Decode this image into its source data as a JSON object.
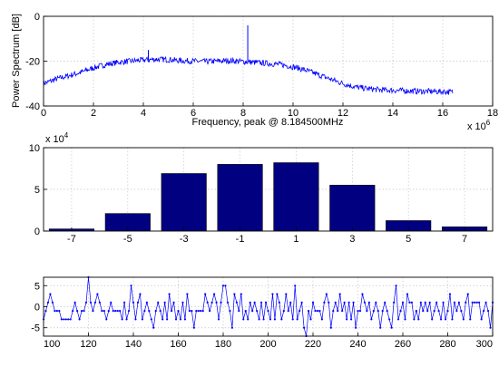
{
  "chart_data": [
    {
      "type": "line",
      "title": "",
      "xlabel": "Frequency, peak @ 8.184500MHz",
      "ylabel": "Power Spectrum [dB]",
      "x_exponent_label": "x 10",
      "x_exponent_power": "6",
      "xlim": [
        0,
        18
      ],
      "ylim": [
        -40,
        0
      ],
      "grid": true,
      "xticks": [
        "0",
        "2",
        "4",
        "6",
        "8",
        "10",
        "12",
        "14",
        "16",
        "18"
      ],
      "yticks": [
        "-40",
        "-20",
        "0"
      ],
      "series_color": "#0000ff",
      "envelope": {
        "x": [
          0,
          0.5,
          1,
          1.5,
          2,
          2.5,
          3,
          3.5,
          4,
          4.5,
          5,
          5.5,
          6,
          6.5,
          7,
          7.5,
          8,
          8.5,
          9,
          9.5,
          10,
          10.5,
          11,
          11.5,
          12,
          12.5,
          13,
          13.5,
          14,
          14.5,
          15,
          15.5,
          16,
          16.4
        ],
        "y": [
          -30,
          -28,
          -26.5,
          -25,
          -23,
          -21.5,
          -20.5,
          -20,
          -19.5,
          -19.2,
          -19.3,
          -19.8,
          -20,
          -20.2,
          -20,
          -19.8,
          -20.2,
          -20.6,
          -21,
          -21.5,
          -22.5,
          -24,
          -26,
          -28,
          -30,
          -31.5,
          -32.3,
          -32.8,
          -33,
          -33.2,
          -33.4,
          -33.5,
          -33.6,
          -33.8
        ]
      },
      "peaks": [
        {
          "x": 4.2,
          "y": -15
        },
        {
          "x": 8.1845,
          "y": -4
        }
      ]
    },
    {
      "type": "bar",
      "title": "",
      "xlabel": "",
      "ylabel": "",
      "y_exponent_label": "x 10",
      "y_exponent_power": "4",
      "ylim": [
        0,
        10
      ],
      "grid": true,
      "xlim": [
        -8,
        8
      ],
      "categories": [
        "-7",
        "-5",
        "-3",
        "-1",
        "1",
        "3",
        "5",
        "7"
      ],
      "x": [
        -7,
        -5,
        -3,
        -1,
        1,
        3,
        5,
        7
      ],
      "values": [
        0.25,
        2.1,
        6.9,
        8.0,
        8.2,
        5.5,
        1.25,
        0.5
      ],
      "yticks": [
        "0",
        "5",
        "10"
      ],
      "bar_color": "#000080"
    },
    {
      "type": "line",
      "title": "",
      "xlabel": "",
      "ylabel": "",
      "xlim": [
        100,
        300
      ],
      "ylim": [
        -7,
        7
      ],
      "grid": true,
      "xticks": [
        "100",
        "120",
        "140",
        "160",
        "180",
        "200",
        "220",
        "240",
        "260",
        "280",
        "300"
      ],
      "yticks": [
        "-5",
        "0",
        "5"
      ],
      "series_color": "#0000ff",
      "x_start": 100,
      "values": [
        -3,
        -1,
        1,
        3,
        1,
        -1,
        -1,
        -1,
        -3,
        -3,
        -3,
        -3,
        -3,
        -1,
        1,
        -1,
        -3,
        -1,
        -1,
        1,
        7,
        1,
        -1,
        1,
        3,
        1,
        -1,
        -1,
        -3,
        -1,
        1,
        -1,
        -1,
        -1,
        -1,
        -3,
        1,
        -3,
        -1,
        5,
        1,
        -3,
        1,
        3,
        -3,
        -1,
        1,
        -1,
        -3,
        -5,
        -1,
        1,
        -1,
        -3,
        1,
        -3,
        3,
        -1,
        1,
        -3,
        -1,
        -3,
        1,
        -3,
        3,
        -1,
        -1,
        -5,
        -1,
        -1,
        -1,
        -1,
        3,
        1,
        -1,
        1,
        3,
        1,
        -3,
        1,
        5,
        5,
        1,
        -1,
        -5,
        3,
        1,
        -1,
        3,
        -3,
        -1,
        -3,
        1,
        -1,
        1,
        -1,
        -3,
        1,
        -3,
        1,
        -1,
        -3,
        3,
        -3,
        3,
        1,
        -3,
        -1,
        3,
        -1,
        1,
        -3,
        5,
        -3,
        -1,
        1,
        -5,
        -7,
        -1,
        -3,
        1,
        -1,
        -1,
        -1,
        -3,
        1,
        3,
        1,
        -5,
        -1,
        1,
        -1,
        3,
        -1,
        1,
        -3,
        1,
        -3,
        1,
        -5,
        -1,
        -1,
        3,
        1,
        -1,
        1,
        -3,
        -1,
        1,
        -1,
        -5,
        -1,
        1,
        -1,
        -3,
        -5,
        1,
        5,
        -3,
        -1,
        1,
        -3,
        3,
        1,
        1,
        -3,
        -1,
        -3,
        1,
        -1,
        1,
        -1,
        1,
        -3,
        -1,
        1,
        -1,
        -3,
        1,
        -3,
        -1,
        3,
        -3,
        1,
        -1,
        1,
        -1,
        -3,
        1,
        3,
        -3,
        1,
        1,
        1,
        1,
        -3,
        -1,
        1,
        -1,
        -5,
        1,
        -1,
        3,
        -3,
        -1,
        1,
        -3,
        3,
        -1,
        1,
        -3
      ]
    }
  ]
}
